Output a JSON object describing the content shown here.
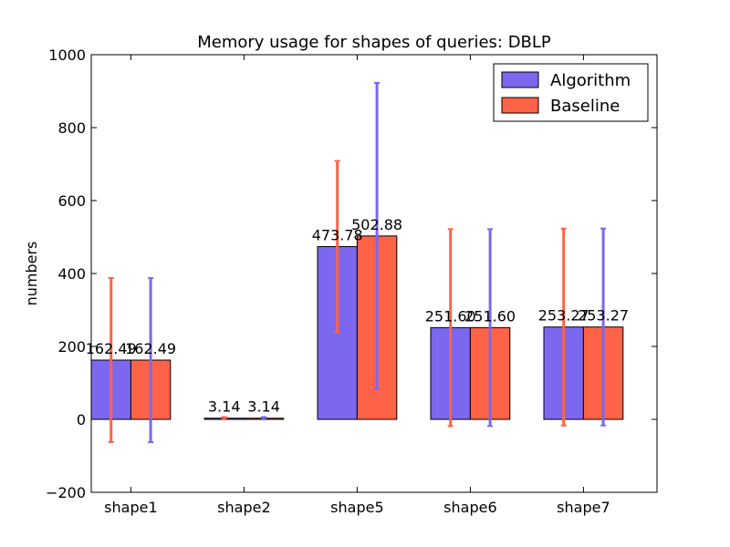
{
  "chart_data": {
    "type": "bar",
    "title": "Memory usage for shapes of queries: DBLP",
    "xlabel": "",
    "ylabel": "numbers",
    "ylim": [
      -200,
      1000
    ],
    "yticks": [
      -200,
      0,
      200,
      400,
      600,
      800,
      1000
    ],
    "categories": [
      "shape1",
      "shape2",
      "shape5",
      "shape6",
      "shape7"
    ],
    "series": [
      {
        "name": "Algorithm",
        "color": "#7b68ee",
        "values": [
          162.49,
          3.14,
          473.78,
          251.6,
          253.27
        ],
        "labels": [
          "162.49",
          "3.14",
          "473.78",
          "251.60",
          "253.27"
        ],
        "err": [
          225,
          3.14,
          235,
          270,
          270
        ],
        "err_color": "#ff6347"
      },
      {
        "name": "Baseline",
        "color": "#ff6347",
        "values": [
          162.49,
          3.14,
          502.88,
          251.6,
          253.27
        ],
        "labels": [
          "162.49",
          "3.14",
          "502.88",
          "251.60",
          "253.27"
        ],
        "err": [
          225,
          3.14,
          420,
          270,
          270
        ],
        "err_color": "#7b68ee"
      }
    ],
    "legend": "top-right",
    "grid": false
  }
}
